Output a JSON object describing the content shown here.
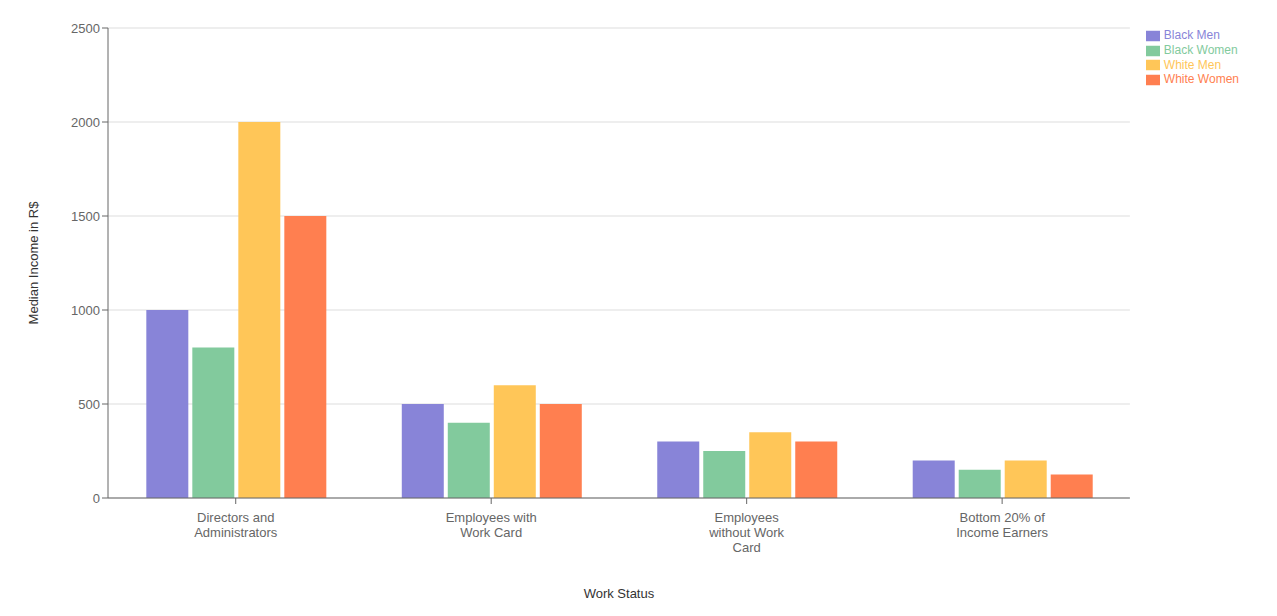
{
  "chart_data": {
    "type": "bar",
    "xlabel": "Work Status",
    "ylabel": "Median Income in R$",
    "categories": [
      "Directors and\nAdministrators",
      "Employees with\nWork Card",
      "Employees\nwithout Work\nCard",
      "Bottom 20% of\nIncome Earners"
    ],
    "series": [
      {
        "name": "Black Men",
        "color": "#8884d8",
        "values": [
          1000,
          500,
          300,
          200
        ]
      },
      {
        "name": "Black Women",
        "color": "#82ca9d",
        "values": [
          800,
          400,
          250,
          150
        ]
      },
      {
        "name": "White Men",
        "color": "#ffc658",
        "values": [
          2000,
          600,
          350,
          200
        ]
      },
      {
        "name": "White Women",
        "color": "#ff7f50",
        "values": [
          1500,
          500,
          300,
          125
        ]
      }
    ],
    "ylim": [
      0,
      2500
    ],
    "yticks": [
      0,
      500,
      1000,
      1500,
      2000,
      2500
    ],
    "grid": true,
    "legend": "upper right"
  }
}
